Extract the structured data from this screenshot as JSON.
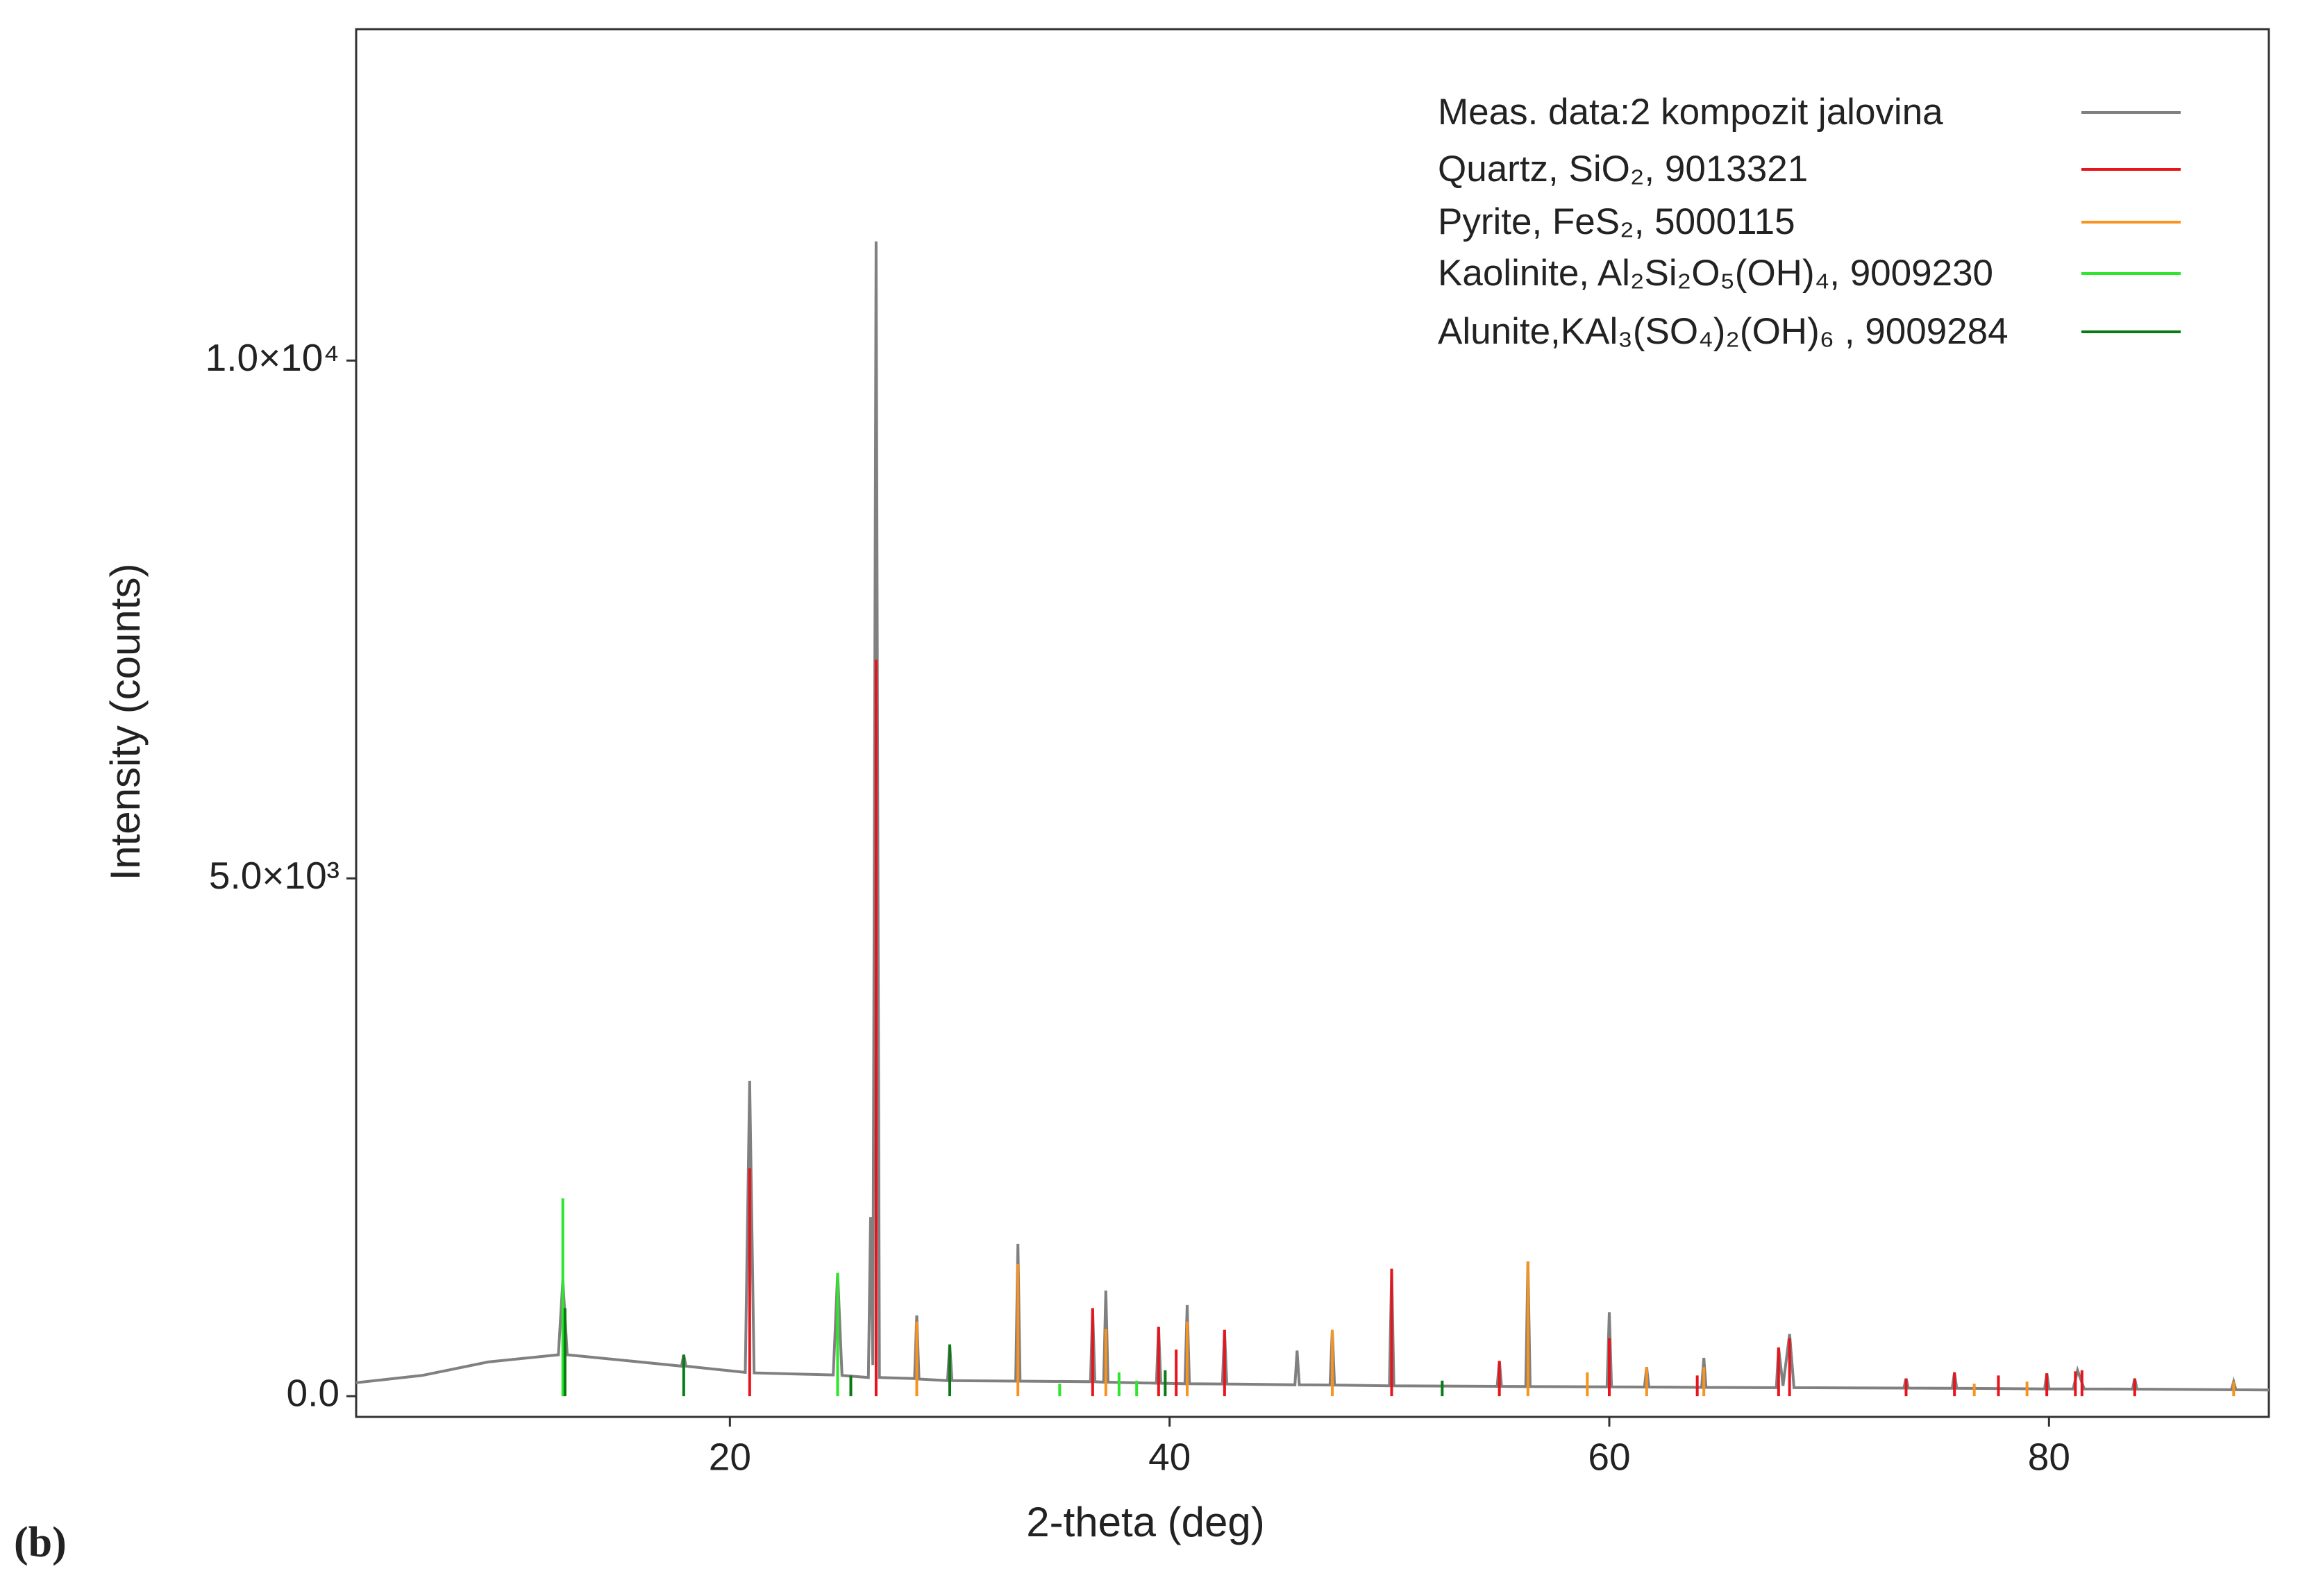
{
  "chart_data": {
    "type": "line",
    "panel_label": "(b)",
    "xlabel": "2-theta (deg)",
    "ylabel": "Intensity (counts)",
    "xlim": [
      3,
      90
    ],
    "ylim": [
      -200,
      13200
    ],
    "xticks": [
      20,
      40,
      60,
      80
    ],
    "yticks": [
      {
        "value": 0,
        "label": "0.0"
      },
      {
        "value": 5000,
        "label": "5.0×10³"
      },
      {
        "value": 10000,
        "label": "1.0×10⁴"
      }
    ],
    "legend": "upper right",
    "series": [
      {
        "name": "Meas. data:2 kompozit jalovina",
        "color": "#808080",
        "kind": "line",
        "x": [
          3,
          6,
          9,
          12.2,
          12.4,
          12.6,
          15,
          17.8,
          17.9,
          18.0,
          20.7,
          20.9,
          21.1,
          24.7,
          24.9,
          25.1,
          26.3,
          26.4,
          26.5,
          26.65,
          26.8,
          28.4,
          28.5,
          28.6,
          29.9,
          30.0,
          30.1,
          33.0,
          33.1,
          33.2,
          36.4,
          36.5,
          36.6,
          37.0,
          37.1,
          37.2,
          39.4,
          39.5,
          39.6,
          40.7,
          40.8,
          40.9,
          42.4,
          42.5,
          42.6,
          45.7,
          45.8,
          45.9,
          47.3,
          47.4,
          47.5,
          50.0,
          50.1,
          50.2,
          54.9,
          55.0,
          55.1,
          56.2,
          56.3,
          56.4,
          59.9,
          60.0,
          60.1,
          61.6,
          61.7,
          61.8,
          64.2,
          64.3,
          64.4,
          67.6,
          67.7,
          67.9,
          68.2,
          68.4,
          73.4,
          73.5,
          73.6,
          75.6,
          75.7,
          75.8,
          79.8,
          79.9,
          80.0,
          81.1,
          81.3,
          81.6,
          83.8,
          83.9,
          84.0,
          88.3,
          88.4,
          88.5,
          90
        ],
        "values": [
          130,
          200,
          330,
          400,
          1120,
          400,
          350,
          290,
          400,
          290,
          230,
          3045,
          225,
          205,
          1190,
          200,
          180,
          1730,
          300,
          11150,
          180,
          170,
          780,
          165,
          150,
          500,
          150,
          145,
          1470,
          145,
          140,
          850,
          140,
          135,
          1020,
          135,
          125,
          670,
          125,
          120,
          880,
          120,
          118,
          640,
          118,
          110,
          440,
          110,
          108,
          640,
          108,
          100,
          1230,
          100,
          95,
          340,
          95,
          93,
          1300,
          93,
          90,
          810,
          90,
          88,
          280,
          88,
          85,
          370,
          85,
          82,
          470,
          100,
          600,
          82,
          78,
          170,
          78,
          76,
          230,
          76,
          70,
          220,
          70,
          70,
          250,
          70,
          68,
          170,
          68,
          62,
          140,
          62,
          60
        ]
      },
      {
        "name": "Quartz, SiO₂, 9013321",
        "color": "#e8141c",
        "kind": "stick",
        "x": [
          20.9,
          26.65,
          36.5,
          39.5,
          40.3,
          42.5,
          50.1,
          55.0,
          60.0,
          64.0,
          67.7,
          68.2,
          73.5,
          75.7,
          77.7,
          79.9,
          81.2,
          81.5,
          83.9
        ],
        "values": [
          2200,
          7110,
          850,
          670,
          450,
          640,
          1230,
          340,
          560,
          200,
          470,
          560,
          170,
          230,
          200,
          220,
          240,
          250,
          170
        ]
      },
      {
        "name": "Pyrite, FeS₂, 5000115",
        "color": "#f7931e",
        "kind": "stick",
        "x": [
          28.5,
          33.1,
          37.1,
          40.8,
          47.4,
          56.3,
          59.0,
          61.7,
          64.3,
          76.6,
          79.0,
          88.4
        ],
        "values": [
          720,
          1275,
          650,
          720,
          640,
          1300,
          230,
          280,
          280,
          120,
          140,
          140
        ]
      },
      {
        "name": "Kaolinite, Al₂Si₂O₅(OH)₄, 9009230",
        "color": "#2ee62e",
        "kind": "stick",
        "x": [
          12.4,
          24.9,
          35.0,
          37.7,
          38.5
        ],
        "values": [
          1910,
          1190,
          120,
          230,
          150
        ]
      },
      {
        "name": "Alunite,KAl₃(SO₄)₂(OH)₆ , 9009284",
        "color": "#0a7a14",
        "kind": "stick",
        "x": [
          12.5,
          17.9,
          25.5,
          30.0,
          39.8,
          52.4
        ],
        "values": [
          850,
          400,
          200,
          500,
          250,
          150
        ]
      }
    ]
  }
}
